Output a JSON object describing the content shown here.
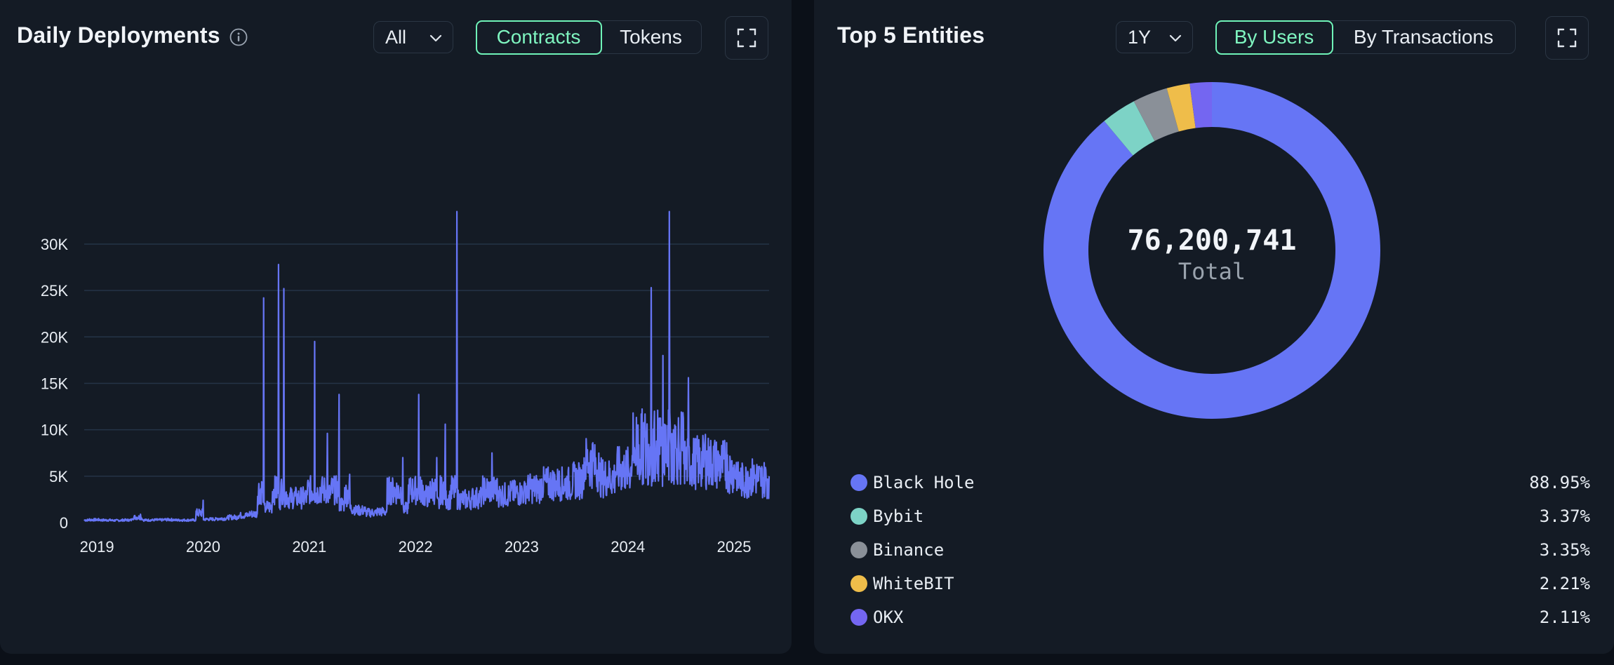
{
  "left": {
    "title": "Daily Deployments",
    "range_select": {
      "value": "All"
    },
    "toggle": {
      "options": [
        "Contracts",
        "Tokens"
      ],
      "active": "Contracts"
    }
  },
  "right": {
    "title": "Top 5 Entities",
    "range_select": {
      "value": "1Y"
    },
    "toggle": {
      "options": [
        "By Users",
        "By Transactions"
      ],
      "active": "By Users"
    },
    "center_value": "76,200,741",
    "center_label": "Total"
  },
  "icons": {
    "info": "info-icon",
    "chevron": "chevron-down-icon",
    "expand": "expand-icon"
  },
  "colors": {
    "line": "#6675f5",
    "accent": "#6ff3b8",
    "black_hole": "#6675f5",
    "bybit": "#7dd3c6",
    "binance": "#8a9098",
    "whitebit": "#efbd4a",
    "okx": "#7466f1"
  },
  "chart_data": [
    {
      "type": "line",
      "title": "Daily Deployments",
      "xlabel": "",
      "ylabel": "",
      "x_ticks": [
        "2019",
        "2020",
        "2021",
        "2022",
        "2023",
        "2024",
        "2025"
      ],
      "y_ticks": [
        "0",
        "5K",
        "10K",
        "15K",
        "20K",
        "25K",
        "30K"
      ],
      "ylim": [
        0,
        34000
      ],
      "xlim": [
        2018.95,
        2025.4
      ],
      "grid": true,
      "series": [
        {
          "points": [
            [
              2018.95,
              200
            ],
            [
              2019.0,
              400
            ],
            [
              2019.1,
              250
            ],
            [
              2019.2,
              300
            ],
            [
              2019.3,
              200
            ],
            [
              2019.4,
              400
            ],
            [
              2019.48,
              900
            ],
            [
              2019.5,
              300
            ],
            [
              2019.6,
              250
            ],
            [
              2019.7,
              350
            ],
            [
              2019.8,
              300
            ],
            [
              2019.9,
              250
            ],
            [
              2020.0,
              300
            ],
            [
              2020.07,
              2400
            ],
            [
              2020.1,
              350
            ],
            [
              2020.2,
              400
            ],
            [
              2020.3,
              500
            ],
            [
              2020.4,
              700
            ],
            [
              2020.5,
              900
            ],
            [
              2020.58,
              1000
            ],
            [
              2020.64,
              24200
            ],
            [
              2020.66,
              1500
            ],
            [
              2020.72,
              2000
            ],
            [
              2020.78,
              27800
            ],
            [
              2020.8,
              2500
            ],
            [
              2020.83,
              25200
            ],
            [
              2020.86,
              3000
            ],
            [
              2020.95,
              2500
            ],
            [
              2021.05,
              3000
            ],
            [
              2021.12,
              19500
            ],
            [
              2021.15,
              3200
            ],
            [
              2021.24,
              9600
            ],
            [
              2021.27,
              3000
            ],
            [
              2021.35,
              13800
            ],
            [
              2021.4,
              2000
            ],
            [
              2021.45,
              5200
            ],
            [
              2021.5,
              1500
            ],
            [
              2021.6,
              1200
            ],
            [
              2021.7,
              1000
            ],
            [
              2021.8,
              1500
            ],
            [
              2021.95,
              7000
            ],
            [
              2022.0,
              1500
            ],
            [
              2022.1,
              13800
            ],
            [
              2022.14,
              4000
            ],
            [
              2022.2,
              2200
            ],
            [
              2022.27,
              7000
            ],
            [
              2022.3,
              2000
            ],
            [
              2022.35,
              10600
            ],
            [
              2022.4,
              2500
            ],
            [
              2022.46,
              33500
            ],
            [
              2022.5,
              2500
            ],
            [
              2022.6,
              2500
            ],
            [
              2022.7,
              3000
            ],
            [
              2022.79,
              7500
            ],
            [
              2022.85,
              3000
            ],
            [
              2022.95,
              3000
            ],
            [
              2023.1,
              3500
            ],
            [
              2023.25,
              4000
            ],
            [
              2023.4,
              4500
            ],
            [
              2023.55,
              4000
            ],
            [
              2023.65,
              5500
            ],
            [
              2023.74,
              8600
            ],
            [
              2023.8,
              4500
            ],
            [
              2023.95,
              5500
            ],
            [
              2024.1,
              6000
            ],
            [
              2024.2,
              9000
            ],
            [
              2024.29,
              25300
            ],
            [
              2024.32,
              12000
            ],
            [
              2024.4,
              18000
            ],
            [
              2024.46,
              33500
            ],
            [
              2024.5,
              10000
            ],
            [
              2024.6,
              8000
            ],
            [
              2024.64,
              15600
            ],
            [
              2024.7,
              5000
            ],
            [
              2024.8,
              9500
            ],
            [
              2024.9,
              5000
            ],
            [
              2025.0,
              8600
            ],
            [
              2025.1,
              4000
            ],
            [
              2025.2,
              5500
            ],
            [
              2025.3,
              4500
            ],
            [
              2025.4,
              5000
            ]
          ]
        }
      ]
    },
    {
      "type": "pie",
      "title": "Top 5 Entities",
      "categories": [
        "Black Hole",
        "Bybit",
        "Binance",
        "WhiteBIT",
        "OKX"
      ],
      "values": [
        88.95,
        3.37,
        3.35,
        2.21,
        2.11
      ],
      "labels": [
        "88.95%",
        "3.37%",
        "3.35%",
        "2.21%",
        "2.11%"
      ],
      "legend": "bottom"
    }
  ]
}
